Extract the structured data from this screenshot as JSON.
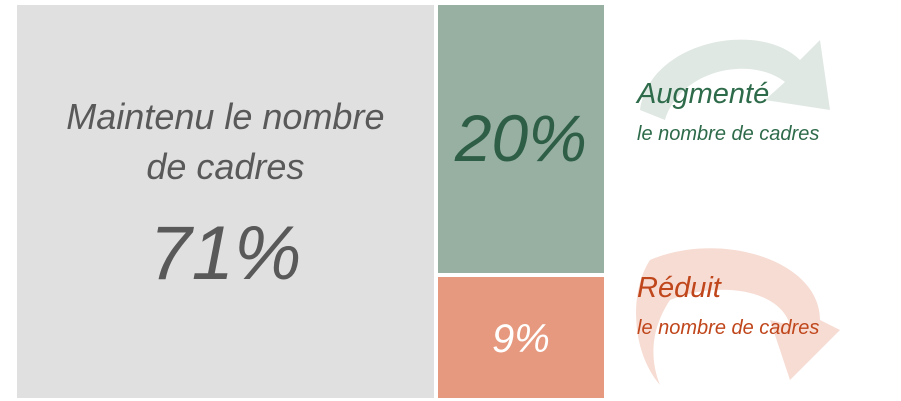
{
  "chart_data": {
    "type": "treemap",
    "categories": [
      "Maintenu le nombre de cadres",
      "Augmenté",
      "Réduit"
    ],
    "sublabels": [
      null,
      "le nombre de cadres",
      "le nombre de cadres"
    ],
    "values": [
      71,
      20,
      9
    ],
    "value_labels": [
      "71%",
      "20%",
      "9%"
    ],
    "colors": [
      "#e0e0e0",
      "#97b0a2",
      "#e6997f"
    ],
    "label_colors": [
      "#595959",
      "#2e6b4a",
      "#c0461b"
    ],
    "value_label_colors": [
      "#595959",
      "#2e5e46",
      "#ffffff"
    ]
  }
}
